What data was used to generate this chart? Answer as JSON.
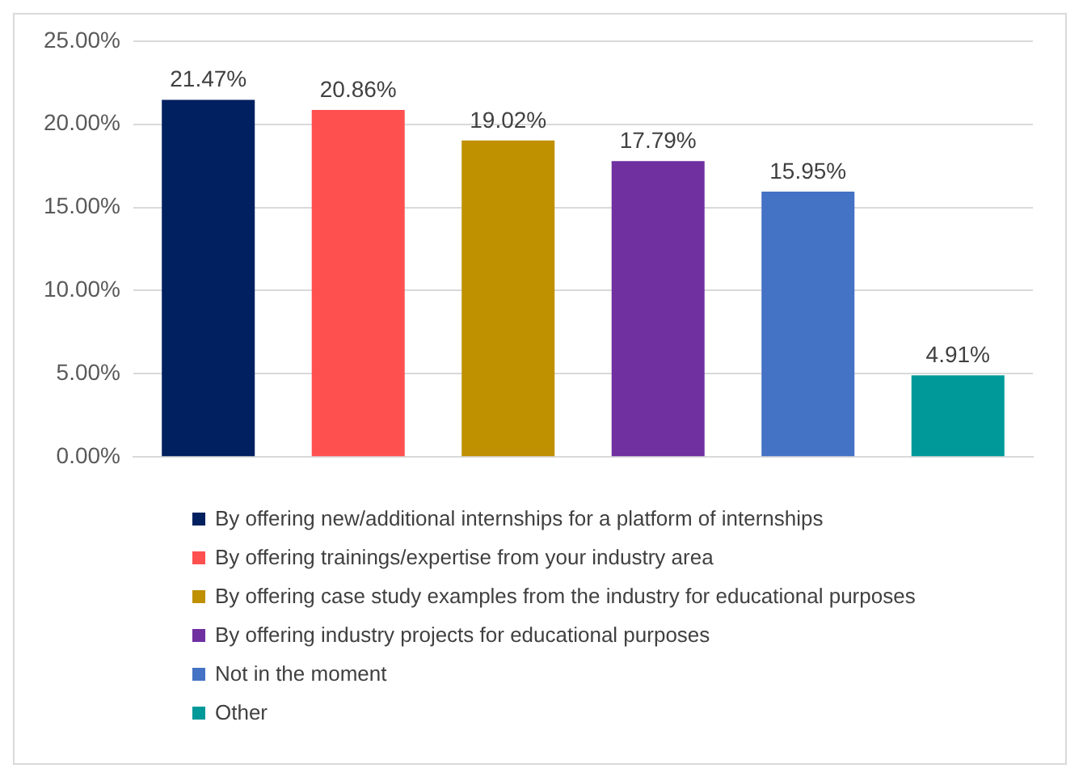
{
  "chart_data": {
    "type": "bar",
    "categories": [
      null,
      null,
      null,
      null,
      null,
      null
    ],
    "series": [
      {
        "name": "By offering new/additional internships for a platform of internships",
        "color": "#002060",
        "values": [
          21.47,
          null,
          null,
          null,
          null,
          null
        ],
        "value_labels": [
          "21.47%",
          null,
          null,
          null,
          null,
          null
        ]
      },
      {
        "name": "By offering trainings/expertise from your industry area",
        "color": "#ff5050",
        "values": [
          null,
          20.86,
          null,
          null,
          null,
          null
        ],
        "value_labels": [
          null,
          "20.86%",
          null,
          null,
          null,
          null
        ]
      },
      {
        "name": "By offering case study examples from the industry for educational purposes",
        "color": "#bf9000",
        "values": [
          null,
          null,
          19.02,
          null,
          null,
          null
        ],
        "value_labels": [
          null,
          null,
          "19.02%",
          null,
          null,
          null
        ]
      },
      {
        "name": "By offering industry projects for educational purposes",
        "color": "#7030a0",
        "values": [
          null,
          null,
          null,
          17.79,
          null,
          null
        ],
        "value_labels": [
          null,
          null,
          null,
          "17.79%",
          null,
          null
        ]
      },
      {
        "name": "Not in the moment",
        "color": "#4472c4",
        "values": [
          null,
          null,
          null,
          null,
          15.95,
          null
        ],
        "value_labels": [
          null,
          null,
          null,
          null,
          "15.95%",
          null
        ]
      },
      {
        "name": "Other",
        "color": "#009999",
        "values": [
          null,
          null,
          null,
          null,
          null,
          4.91
        ],
        "value_labels": [
          null,
          null,
          null,
          null,
          null,
          "4.91%"
        ]
      }
    ],
    "ylim": [
      0,
      25
    ],
    "yticks": [
      {
        "value": 0,
        "label": "0.00%"
      },
      {
        "value": 5,
        "label": "5.00%"
      },
      {
        "value": 10,
        "label": "10.00%"
      },
      {
        "value": 15,
        "label": "15.00%"
      },
      {
        "value": 20,
        "label": "20.00%"
      },
      {
        "value": 25,
        "label": "25.00%"
      }
    ],
    "grid": "y",
    "legend": "bottom"
  }
}
